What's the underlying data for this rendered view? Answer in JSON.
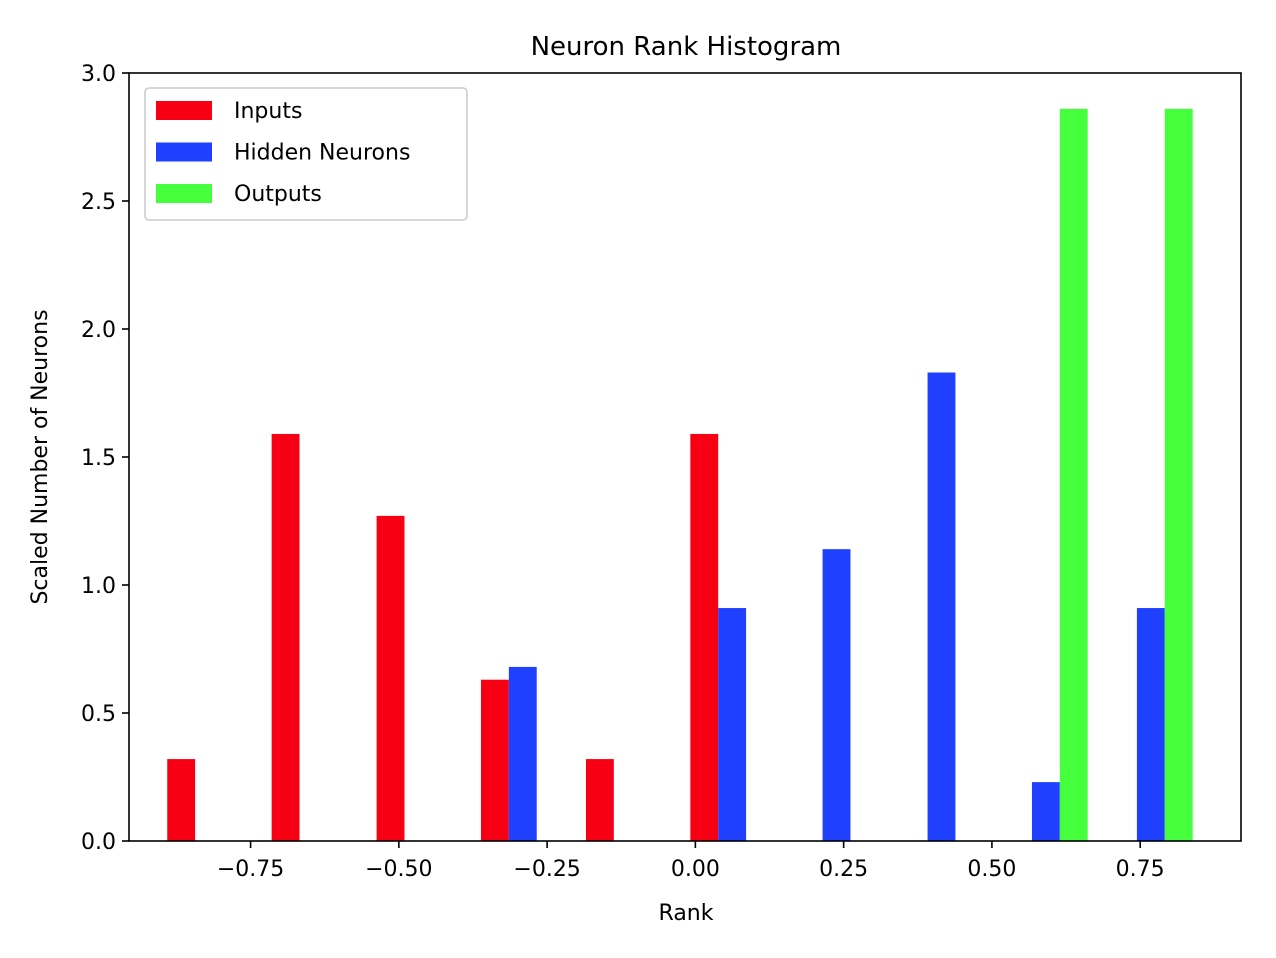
{
  "chart_data": {
    "type": "bar",
    "title": "Neuron Rank Histogram",
    "xlabel": "Rank",
    "ylabel": "Scaled Number of Neurons",
    "xlim": [
      -0.955,
      0.92
    ],
    "ylim": [
      0,
      3.0
    ],
    "x_ticks": [
      -0.75,
      -0.5,
      -0.25,
      0.0,
      0.25,
      0.5,
      0.75
    ],
    "x_tick_labels": [
      "−0.75",
      "−0.50",
      "−0.25",
      "0.00",
      "0.25",
      "0.50",
      "0.75"
    ],
    "y_ticks": [
      0.0,
      0.5,
      1.0,
      1.5,
      2.0,
      2.5,
      3.0
    ],
    "y_tick_labels": [
      "0.0",
      "0.5",
      "1.0",
      "1.5",
      "2.0",
      "2.5",
      "3.0"
    ],
    "bar_width": 0.047,
    "grid": false,
    "legend_position": "top-left",
    "series": [
      {
        "name": "Inputs",
        "color": "#f70014",
        "points": [
          {
            "x": -0.867,
            "y": 0.32
          },
          {
            "x": -0.691,
            "y": 1.59
          },
          {
            "x": -0.514,
            "y": 1.27
          },
          {
            "x": -0.338,
            "y": 0.63
          },
          {
            "x": -0.161,
            "y": 0.32
          },
          {
            "x": 0.015,
            "y": 1.59
          }
        ]
      },
      {
        "name": "Hidden Neurons",
        "color": "#1f41ff",
        "points": [
          {
            "x": -0.291,
            "y": 0.68
          },
          {
            "x": 0.062,
            "y": 0.91
          },
          {
            "x": 0.238,
            "y": 1.14
          },
          {
            "x": 0.415,
            "y": 1.83
          },
          {
            "x": 0.591,
            "y": 0.23
          },
          {
            "x": 0.768,
            "y": 0.91
          }
        ]
      },
      {
        "name": "Outputs",
        "color": "#45ff3d",
        "points": [
          {
            "x": 0.638,
            "y": 2.86
          },
          {
            "x": 0.815,
            "y": 2.86
          }
        ]
      }
    ]
  }
}
